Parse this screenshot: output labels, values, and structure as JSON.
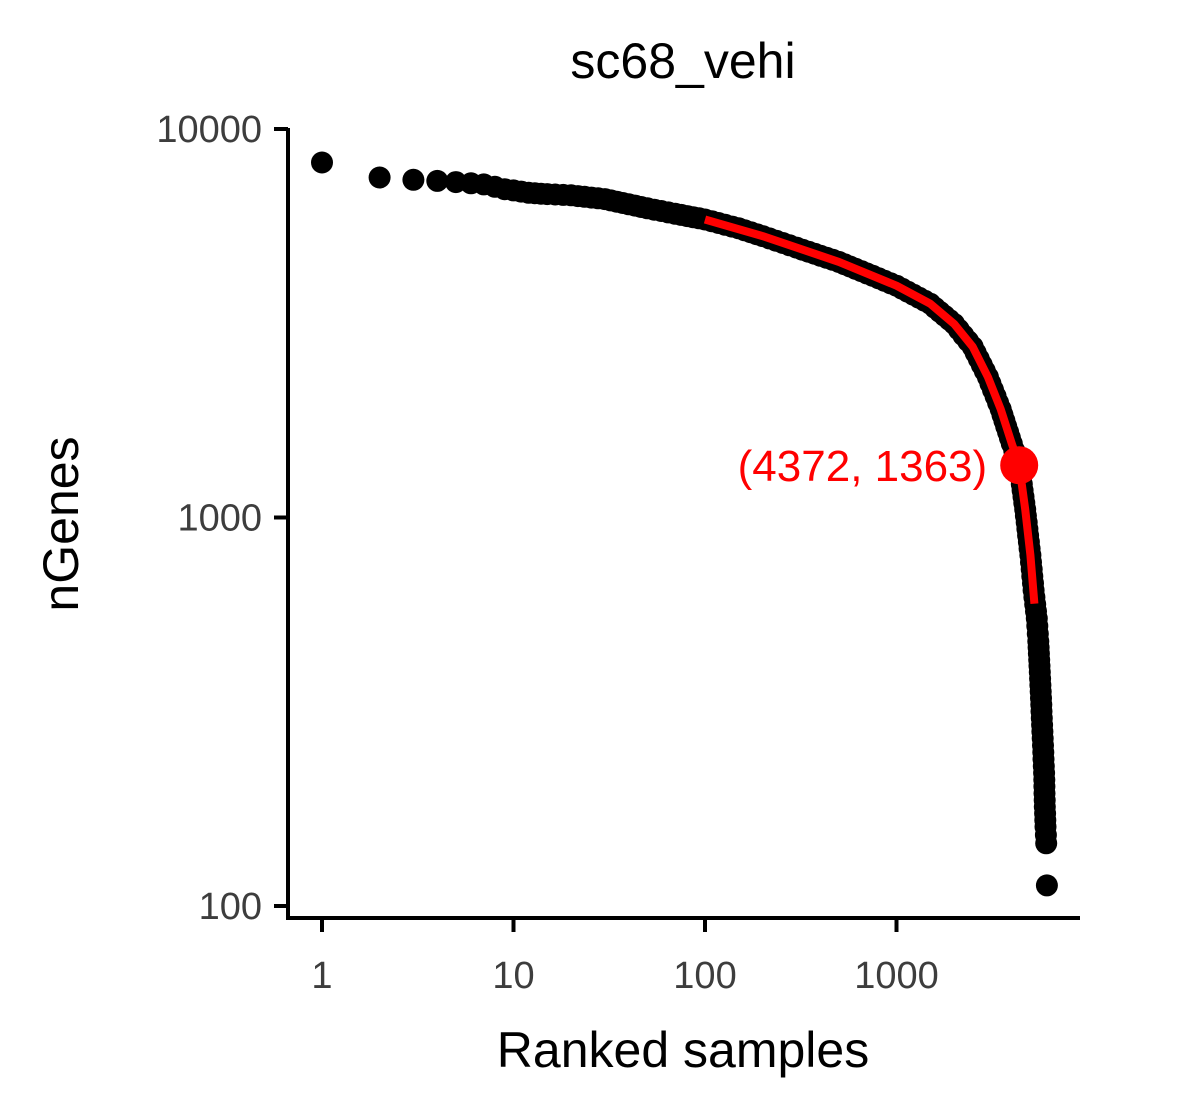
{
  "chart_data": {
    "type": "scatter",
    "title": "sc68_vehi",
    "xlabel": "Ranked samples",
    "ylabel": "nGenes",
    "x_scale": "log10",
    "y_scale": "log10",
    "xlim": [
      0.8,
      8500
    ],
    "ylim": [
      97,
      10000
    ],
    "x_ticks": [
      1,
      10,
      100,
      1000
    ],
    "x_tick_labels": [
      "1",
      "10",
      "100",
      "1000"
    ],
    "y_ticks": [
      100,
      1000,
      10000
    ],
    "y_tick_labels": [
      "100",
      "1000",
      "10000"
    ],
    "point_color": "#000000",
    "series": [
      {
        "points": [
          [
            1,
            8200
          ],
          [
            2,
            7500
          ],
          [
            3,
            7400
          ],
          [
            4,
            7350
          ],
          [
            5,
            7300
          ],
          [
            6,
            7250
          ],
          [
            7,
            7200
          ],
          [
            8,
            7100
          ],
          [
            9,
            7000
          ],
          [
            10,
            6950
          ],
          [
            12,
            6850
          ],
          [
            15,
            6800
          ],
          [
            20,
            6750
          ],
          [
            30,
            6600
          ],
          [
            40,
            6400
          ],
          [
            50,
            6250
          ],
          [
            70,
            6050
          ],
          [
            100,
            5850
          ],
          [
            150,
            5550
          ],
          [
            200,
            5300
          ],
          [
            300,
            4950
          ],
          [
            500,
            4550
          ],
          [
            700,
            4250
          ],
          [
            1000,
            3950
          ],
          [
            1500,
            3550
          ],
          [
            2000,
            3150
          ],
          [
            2500,
            2750
          ],
          [
            3000,
            2300
          ],
          [
            3500,
            1900
          ],
          [
            4000,
            1550
          ],
          [
            4372,
            1363
          ],
          [
            4700,
            1050
          ],
          [
            5000,
            800
          ],
          [
            5200,
            650
          ],
          [
            5400,
            550
          ],
          [
            5500,
            480
          ],
          [
            5600,
            400
          ],
          [
            5700,
            330
          ],
          [
            5800,
            270
          ],
          [
            5900,
            220
          ],
          [
            5950,
            180
          ],
          [
            6000,
            160
          ],
          [
            6050,
            145
          ],
          [
            6100,
            113
          ]
        ]
      }
    ],
    "fit_line": {
      "color": "#ff0000",
      "points": [
        [
          100,
          5850
        ],
        [
          200,
          5300
        ],
        [
          500,
          4550
        ],
        [
          1000,
          3950
        ],
        [
          1500,
          3550
        ],
        [
          2000,
          3150
        ],
        [
          2500,
          2750
        ],
        [
          3000,
          2300
        ],
        [
          3500,
          1900
        ],
        [
          4000,
          1550
        ],
        [
          4372,
          1363
        ],
        [
          4700,
          1050
        ],
        [
          5000,
          800
        ],
        [
          5250,
          600
        ]
      ]
    },
    "highlight": {
      "x": 4372,
      "y": 1363,
      "label": "(4372, 1363)",
      "color": "#ff0000"
    }
  }
}
